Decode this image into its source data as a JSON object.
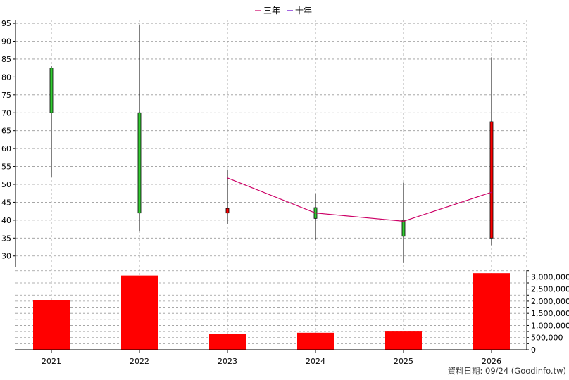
{
  "legend": [
    {
      "label": "三年",
      "color": "#cc0066"
    },
    {
      "label": "十年",
      "color": "#6600cc"
    }
  ],
  "footer": "資料日期: 09/24  (Goodinfo.tw)",
  "chart_data": [
    {
      "type": "candlestick",
      "title": "",
      "x": [
        "2021",
        "2022",
        "2023",
        "2024",
        "2025",
        "2026"
      ],
      "ylim": [
        27,
        96
      ],
      "yticks": [
        30,
        35,
        40,
        45,
        50,
        55,
        60,
        65,
        70,
        75,
        80,
        85,
        90,
        95
      ],
      "grid": true,
      "candles": [
        {
          "x": "2021",
          "open": 70,
          "high": 83,
          "low": 52,
          "close": 82.5,
          "color": "green"
        },
        {
          "x": "2022",
          "open": 42,
          "high": 94.5,
          "low": 37,
          "close": 70,
          "color": "green"
        },
        {
          "x": "2023",
          "open": 43.3,
          "high": 54,
          "low": 39,
          "close": 42,
          "color": "red"
        },
        {
          "x": "2024",
          "open": 40.5,
          "high": 47.5,
          "low": 34.5,
          "close": 43.5,
          "color": "green"
        },
        {
          "x": "2025",
          "open": 35.5,
          "high": 50.5,
          "low": 28,
          "close": 40,
          "color": "green"
        },
        {
          "x": "2026",
          "open": 67.5,
          "high": 85.5,
          "low": 33,
          "close": 35,
          "color": "red"
        }
      ],
      "series": [
        {
          "name": "三年",
          "x": [
            "2023",
            "2024",
            "2025",
            "2026"
          ],
          "values": [
            51.8,
            42.0,
            39.7,
            47.8
          ]
        }
      ]
    },
    {
      "type": "bar",
      "title": "",
      "categories": [
        "2021",
        "2022",
        "2023",
        "2024",
        "2025",
        "2026"
      ],
      "values": [
        2050000,
        3050000,
        650000,
        700000,
        750000,
        3150000
      ],
      "ylim": [
        0,
        3300000
      ],
      "yticks": [
        0,
        500000,
        1000000,
        1500000,
        2000000,
        2500000,
        3000000
      ],
      "ytick_labels": [
        "0",
        "500,000",
        "1,000,000",
        "1,500,000",
        "2,000,000",
        "2,500,000",
        "3,000,000"
      ],
      "bar_color": "#ff0000",
      "grid": true
    }
  ]
}
